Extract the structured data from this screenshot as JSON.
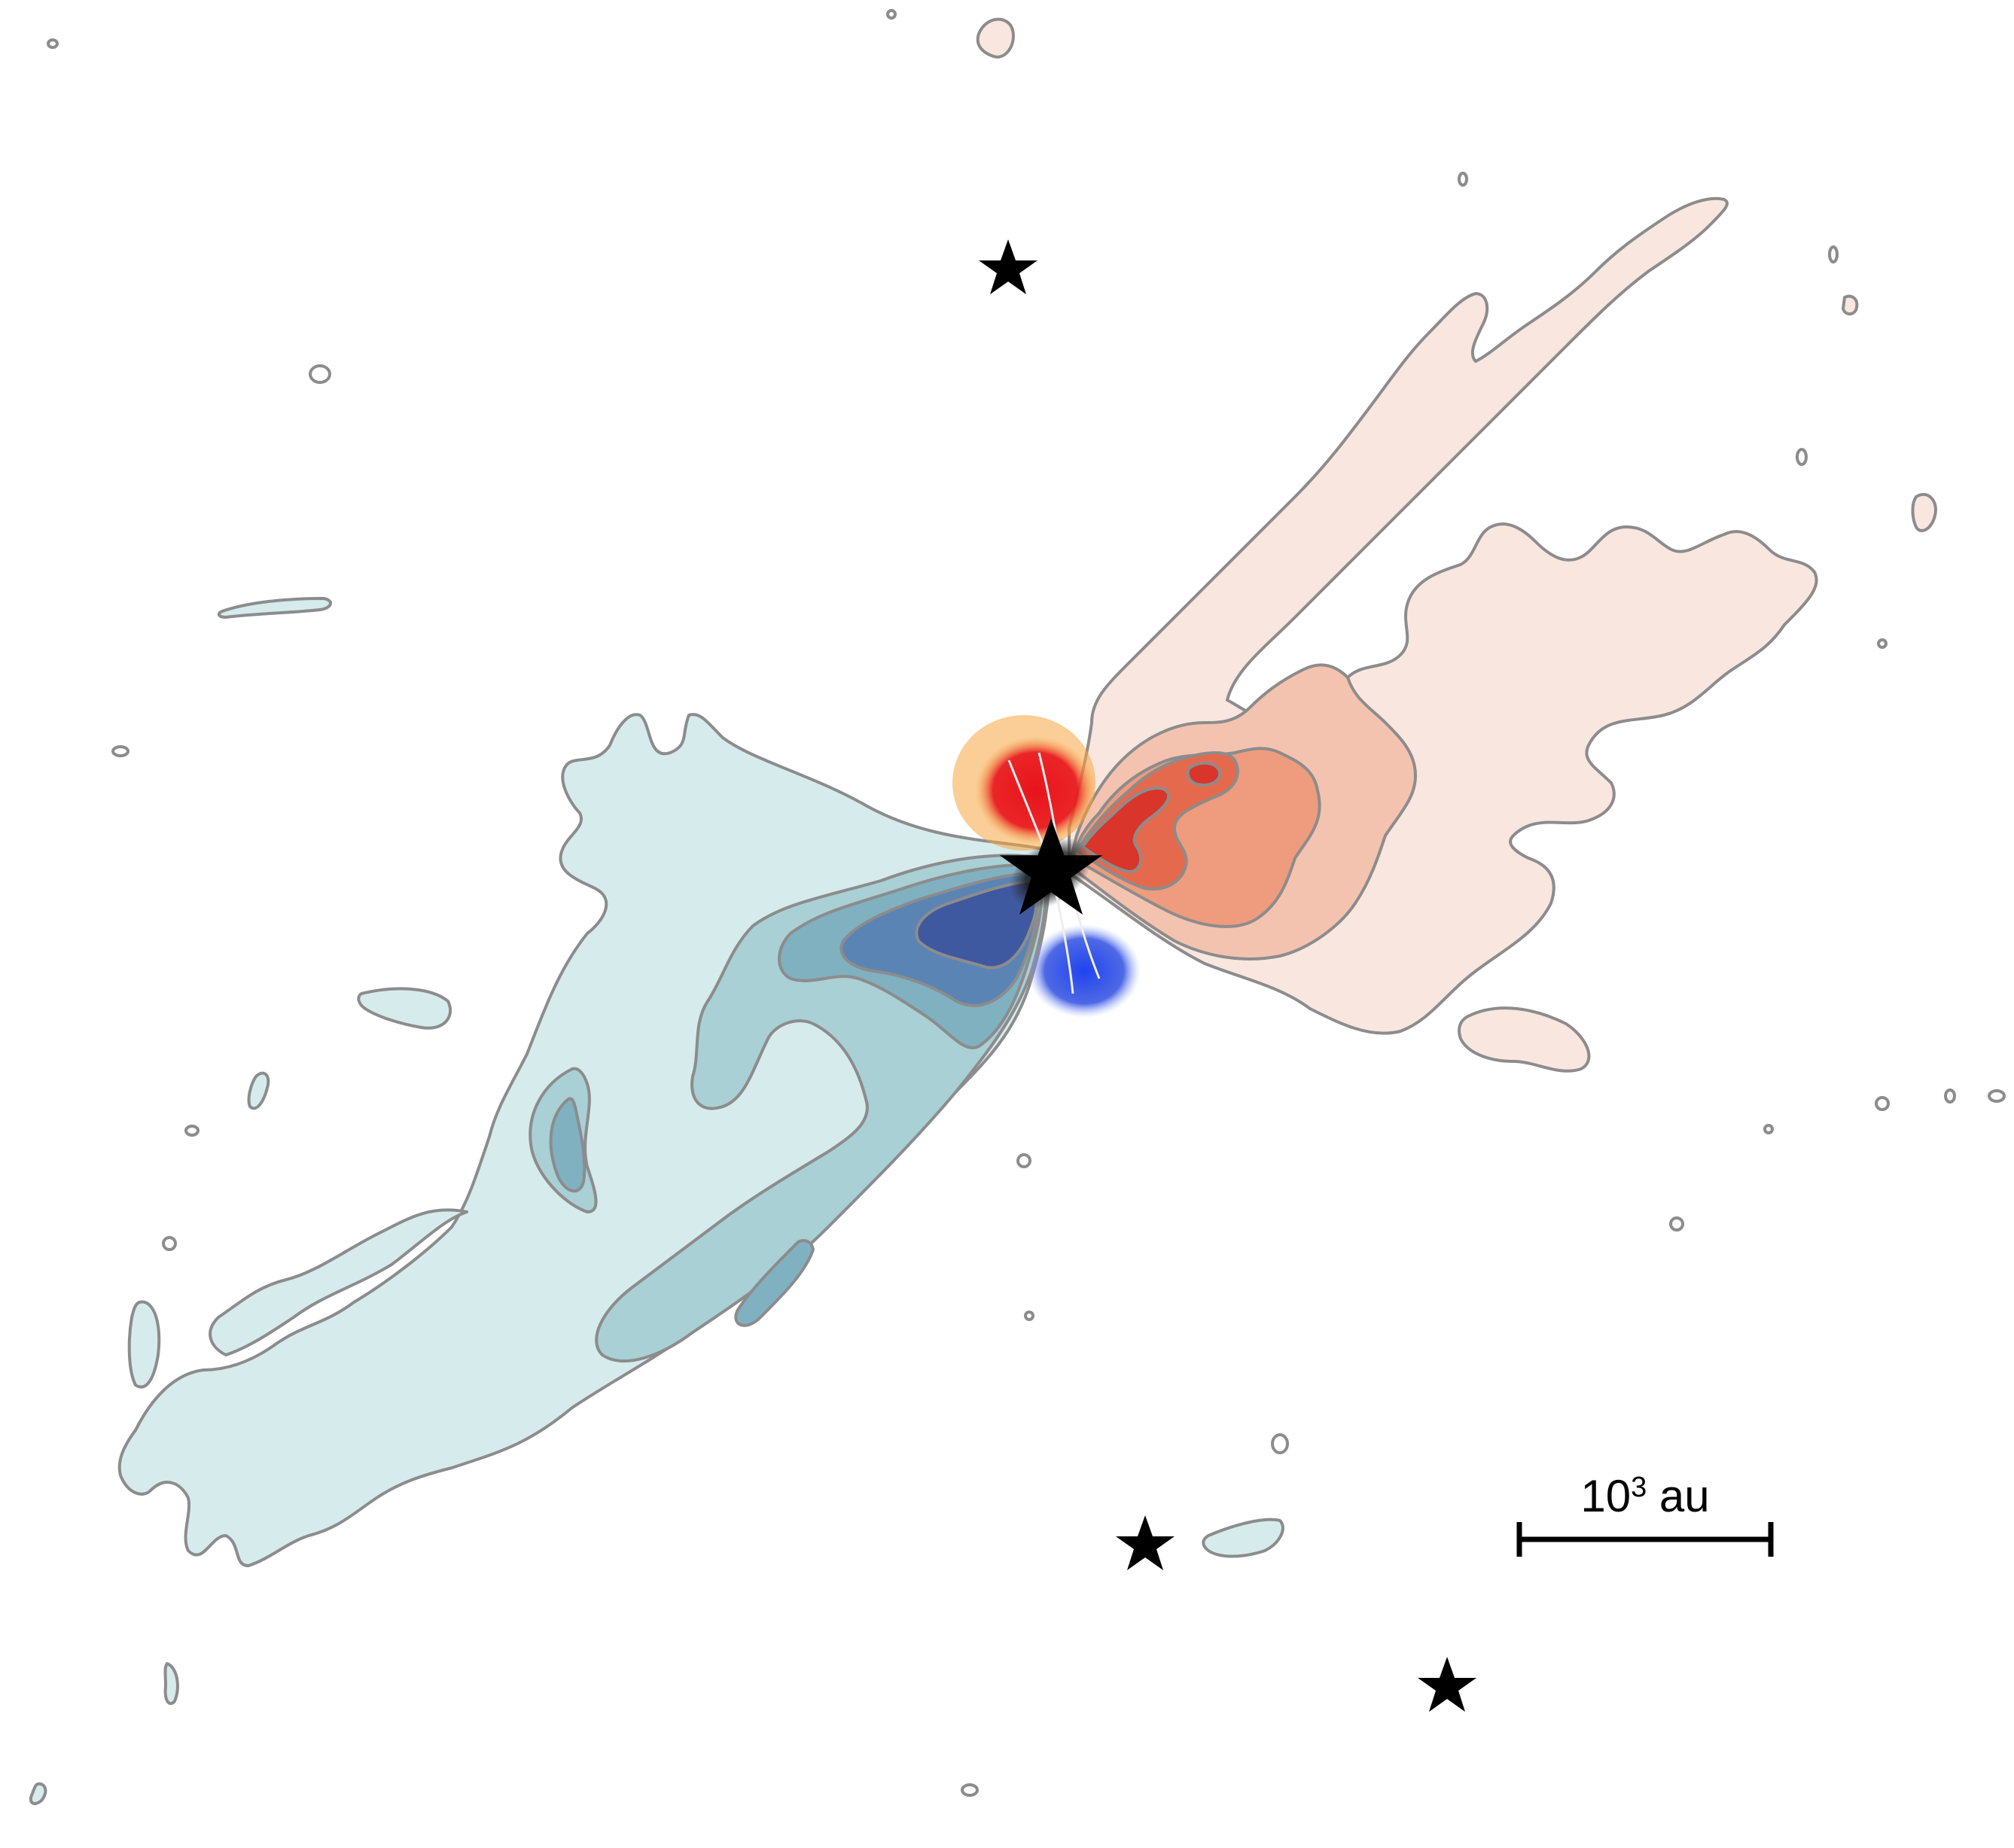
{
  "scale_bar": {
    "label_base": "10",
    "label_exponent": "3",
    "label_unit": " au"
  },
  "colors": {
    "blue_outer": "#d6ebec",
    "blue_mid": "#a9d0d4",
    "blue_mid2": "#7fb1c1",
    "blue_inner": "#5a84b4",
    "blue_core": "#3f59a0",
    "blue_jet": "#2f4ee0",
    "red_outer": "#f9e6df",
    "red_mid": "#f4c3af",
    "red_mid2": "#ee9c7d",
    "red_inner": "#e56a4d",
    "red_core": "#d9352b",
    "red_jet": "#e8131b",
    "orange_glow": "#f5a640",
    "contour": "#8c8c8c",
    "star": "#000000"
  },
  "icons": {
    "source_marker": "star-icon"
  }
}
